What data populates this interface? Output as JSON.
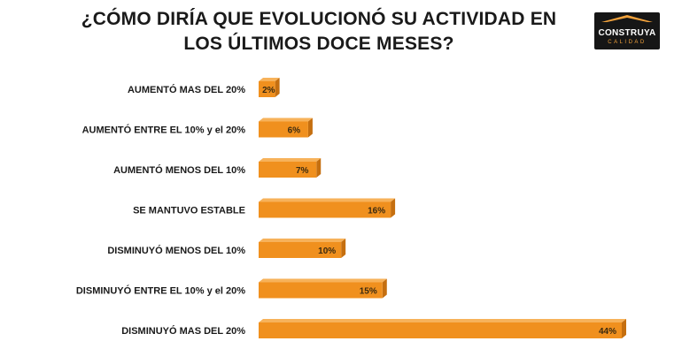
{
  "title": {
    "line1": "¿CÓMO DIRÍA QUE EVOLUCIONÓ SU ACTIVIDAD EN",
    "line2": "LOS ÚLTIMOS DOCE MESES?"
  },
  "logo": {
    "brand": "CONSTRUYA",
    "sub": "CALIDAD"
  },
  "chart_data": {
    "type": "bar",
    "orientation": "horizontal",
    "categories": [
      "AUMENTÓ MAS DEL 20%",
      "AUMENTÓ ENTRE EL 10% y el 20%",
      "AUMENTÓ MENOS DEL  10%",
      "SE MANTUVO ESTABLE",
      "DISMINUYÓ MENOS DEL 10%",
      "DISMINUYÓ ENTRE EL 10% y el 20%",
      "DISMINUYÓ MAS DEL 20%"
    ],
    "values": [
      2,
      6,
      7,
      16,
      10,
      15,
      44
    ],
    "data_labels": [
      "2%",
      "6%",
      "7%",
      "16%",
      "10%",
      "15%",
      "44%"
    ],
    "xlim": [
      0,
      44
    ],
    "grid": false,
    "legend": false,
    "bar_color": "#f0901e",
    "bar_top_color": "#f7b25a",
    "bar_side_color": "#c56f10"
  }
}
